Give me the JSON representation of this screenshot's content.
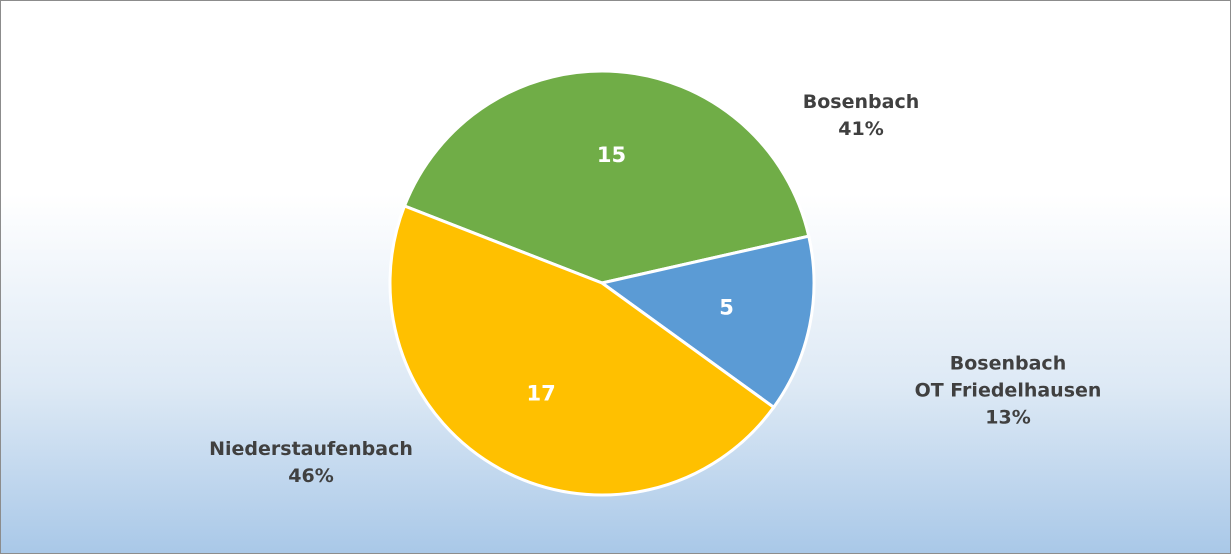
{
  "chart_data": {
    "type": "pie",
    "categories": [
      "Bosenbach",
      "Bosenbach\nOT Friedelhausen",
      "Niederstaufenbach"
    ],
    "values": [
      15,
      5,
      17
    ],
    "percentages": [
      {
        "value": 41,
        "label": "41%"
      },
      {
        "value": 13,
        "label": "13%"
      },
      {
        "value": 46,
        "label": "46%"
      }
    ],
    "colors": [
      "#70ad47",
      "#5b9bd5",
      "#ffc000"
    ]
  }
}
